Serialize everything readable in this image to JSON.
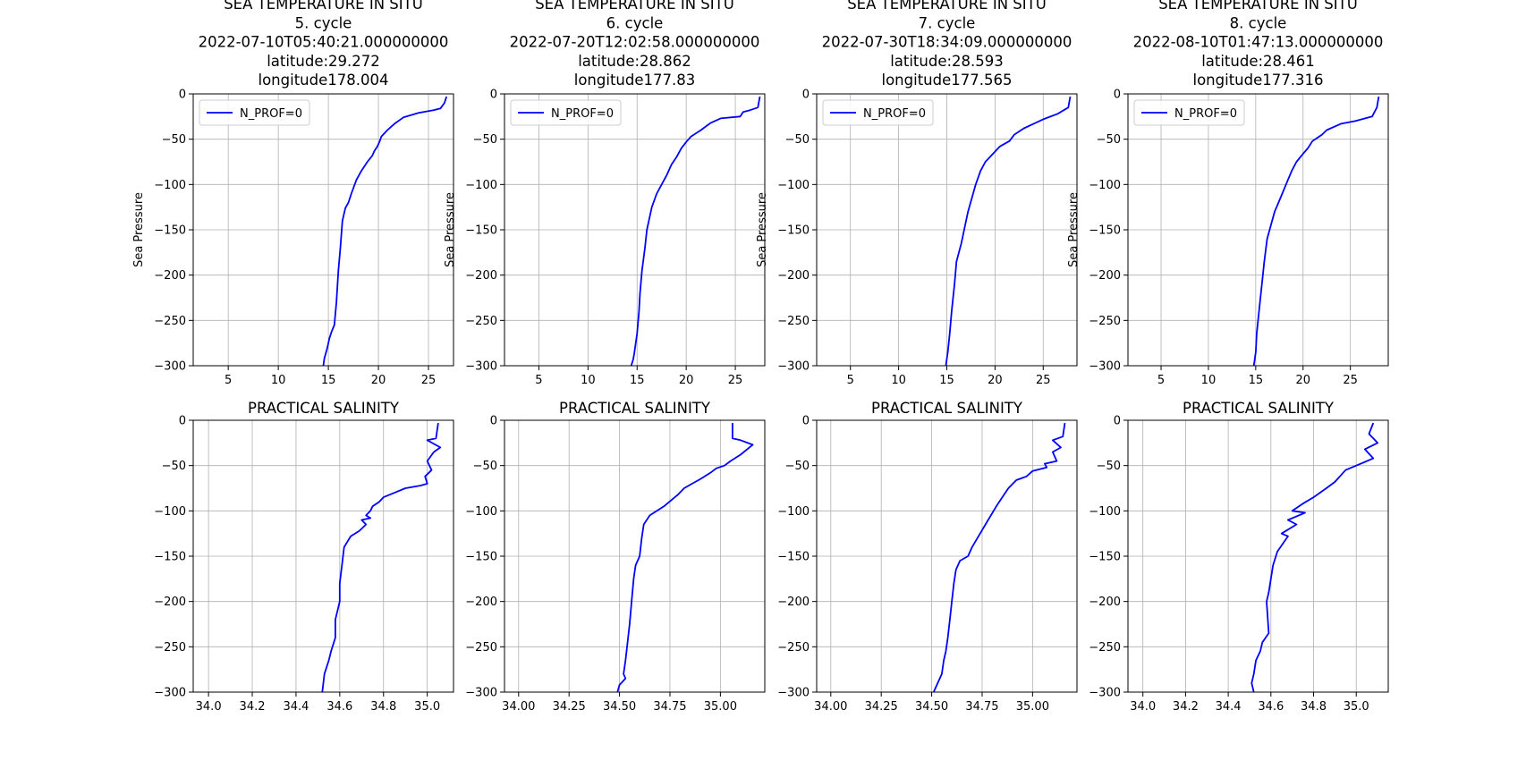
{
  "chart_data": [
    {
      "type": "line",
      "title": [
        "SEA TEMPERATURE IN SITU",
        "5. cycle",
        "2022-07-10T05:40:21.000000000",
        "latitude:29.272",
        "longitude178.004"
      ],
      "xlabel": "",
      "ylabel": "Sea Pressure",
      "xlim": [
        1.5,
        27.5
      ],
      "ylim": [
        -300,
        0
      ],
      "xticks": [
        5,
        10,
        15,
        20,
        25
      ],
      "yticks": [
        0,
        -50,
        -100,
        -150,
        -200,
        -250,
        -300
      ],
      "grid": true,
      "legend": "top-left",
      "series": [
        {
          "name": "N_PROF=0",
          "color": "#0000ff",
          "x": [
            26.8,
            26.6,
            26.2,
            25.5,
            24.0,
            22.5,
            21.6,
            20.9,
            20.3,
            20.1,
            19.9,
            19.6,
            19.4,
            18.9,
            18.3,
            17.8,
            17.3,
            17.0,
            16.7,
            16.4,
            16.2,
            16.0,
            15.8,
            15.6,
            15.3,
            15.1,
            14.9,
            14.6,
            14.5
          ],
          "y": [
            -3,
            -10,
            -16,
            -18,
            -21,
            -26,
            -33,
            -40,
            -47,
            -53,
            -58,
            -63,
            -68,
            -75,
            -85,
            -95,
            -110,
            -120,
            -126,
            -140,
            -170,
            -195,
            -230,
            -255,
            -263,
            -270,
            -280,
            -292,
            -300
          ]
        }
      ]
    },
    {
      "type": "line",
      "title": [
        "SEA TEMPERATURE IN SITU",
        "6. cycle",
        "2022-07-20T12:02:58.000000000",
        "latitude:28.862",
        "longitude177.83"
      ],
      "xlabel": "",
      "ylabel": "Sea Pressure",
      "xlim": [
        1.5,
        28
      ],
      "ylim": [
        -300,
        0
      ],
      "xticks": [
        5,
        10,
        15,
        20,
        25
      ],
      "yticks": [
        0,
        -50,
        -100,
        -150,
        -200,
        -250,
        -300
      ],
      "grid": true,
      "legend": "top-left",
      "series": [
        {
          "name": "N_PROF=0",
          "color": "#0000ff",
          "x": [
            27.5,
            27.3,
            26.5,
            25.8,
            25.5,
            23.5,
            22.5,
            21.5,
            20.5,
            20.0,
            19.5,
            19.0,
            18.5,
            18.0,
            17.5,
            17.0,
            16.5,
            16.0,
            15.8,
            15.5,
            15.3,
            15.2,
            15.0,
            14.8,
            14.7,
            14.6,
            14.4
          ],
          "y": [
            -3,
            -15,
            -18,
            -20,
            -25,
            -27,
            -32,
            -40,
            -47,
            -53,
            -60,
            -70,
            -78,
            -90,
            -100,
            -110,
            -125,
            -150,
            -170,
            -195,
            -220,
            -240,
            -265,
            -280,
            -287,
            -293,
            -300
          ]
        }
      ]
    },
    {
      "type": "line",
      "title": [
        "SEA TEMPERATURE IN SITU",
        "7. cycle",
        "2022-07-30T18:34:09.000000000",
        "latitude:28.593",
        "longitude177.565"
      ],
      "xlabel": "",
      "ylabel": "Sea Pressure",
      "xlim": [
        1.5,
        28.5
      ],
      "ylim": [
        -300,
        0
      ],
      "xticks": [
        5,
        10,
        15,
        20,
        25
      ],
      "yticks": [
        0,
        -50,
        -100,
        -150,
        -200,
        -250,
        -300
      ],
      "grid": true,
      "legend": "top-left",
      "series": [
        {
          "name": "N_PROF=0",
          "color": "#0000ff",
          "x": [
            27.8,
            27.6,
            26.5,
            25.0,
            24.0,
            23.0,
            22.0,
            21.5,
            20.5,
            19.8,
            19.0,
            18.5,
            18.0,
            17.6,
            17.2,
            16.8,
            16.5,
            16.0,
            15.8,
            15.5,
            15.3,
            15.1,
            14.9
          ],
          "y": [
            -3,
            -15,
            -22,
            -28,
            -33,
            -38,
            -45,
            -52,
            -58,
            -66,
            -75,
            -85,
            -100,
            -115,
            -130,
            -150,
            -165,
            -185,
            -210,
            -240,
            -265,
            -285,
            -300
          ]
        }
      ]
    },
    {
      "type": "line",
      "title": [
        "SEA TEMPERATURE IN SITU",
        "8. cycle",
        "2022-08-10T01:47:13.000000000",
        "latitude:28.461",
        "longitude177.316"
      ],
      "xlabel": "",
      "ylabel": "Sea Pressure",
      "xlim": [
        1.5,
        29
      ],
      "ylim": [
        -300,
        0
      ],
      "xticks": [
        5,
        10,
        15,
        20,
        25
      ],
      "yticks": [
        0,
        -50,
        -100,
        -150,
        -200,
        -250,
        -300
      ],
      "grid": true,
      "legend": "top-left",
      "series": [
        {
          "name": "N_PROF=0",
          "color": "#0000ff",
          "x": [
            28.0,
            27.8,
            27.3,
            25.5,
            24.0,
            22.5,
            22.0,
            21.0,
            20.5,
            20.0,
            19.3,
            18.8,
            18.4,
            17.8,
            17.4,
            17.0,
            16.6,
            16.2,
            15.9,
            15.7,
            15.5,
            15.3,
            15.1,
            15.0,
            14.8
          ],
          "y": [
            -3,
            -15,
            -25,
            -30,
            -33,
            -40,
            -45,
            -52,
            -60,
            -66,
            -75,
            -85,
            -95,
            -110,
            -120,
            -130,
            -145,
            -160,
            -185,
            -205,
            -225,
            -245,
            -265,
            -285,
            -300
          ]
        }
      ]
    },
    {
      "type": "line",
      "title": "PRACTICAL SALINITY",
      "xlabel": "",
      "ylabel": "",
      "xlim": [
        33.93,
        35.12
      ],
      "ylim": [
        -300,
        0
      ],
      "xticks": [
        34.0,
        34.2,
        34.4,
        34.6,
        34.8,
        35.0
      ],
      "xtick_labels": [
        "34.0",
        "34.2",
        "34.4",
        "34.6",
        "34.8",
        "35.0"
      ],
      "yticks": [
        0,
        -50,
        -100,
        -150,
        -200,
        -250,
        -300
      ],
      "grid": true,
      "series": [
        {
          "color": "#0000ff",
          "x": [
            35.05,
            35.04,
            35.0,
            35.06,
            35.03,
            35.0,
            35.02,
            34.99,
            35.0,
            34.97,
            34.9,
            34.85,
            34.8,
            34.78,
            34.75,
            34.74,
            34.72,
            34.74,
            34.7,
            34.72,
            34.69,
            34.65,
            34.62,
            34.61,
            34.6,
            34.6,
            34.58,
            34.58,
            34.56,
            34.55,
            34.53,
            34.52
          ],
          "y": [
            -3,
            -20,
            -22,
            -30,
            -35,
            -45,
            -55,
            -62,
            -70,
            -72,
            -75,
            -80,
            -85,
            -90,
            -95,
            -100,
            -105,
            -108,
            -110,
            -115,
            -122,
            -128,
            -140,
            -160,
            -180,
            -200,
            -220,
            -240,
            -255,
            -265,
            -280,
            -300
          ]
        }
      ]
    },
    {
      "type": "line",
      "title": "PRACTICAL SALINITY",
      "xlabel": "",
      "ylabel": "",
      "xlim": [
        33.93,
        35.22
      ],
      "ylim": [
        -300,
        0
      ],
      "xticks": [
        34.0,
        34.25,
        34.5,
        34.75,
        35.0
      ],
      "xtick_labels": [
        "34.00",
        "34.25",
        "34.50",
        "34.75",
        "35.00"
      ],
      "yticks": [
        0,
        -50,
        -100,
        -150,
        -200,
        -250,
        -300
      ],
      "grid": true,
      "series": [
        {
          "color": "#0000ff",
          "x": [
            35.06,
            35.06,
            35.1,
            35.16,
            35.1,
            35.05,
            35.02,
            34.98,
            34.95,
            34.9,
            34.86,
            34.82,
            34.79,
            34.72,
            34.65,
            34.62,
            34.61,
            34.6,
            34.58,
            34.57,
            34.56,
            34.55,
            34.54,
            34.53,
            34.52,
            34.53,
            34.5,
            34.49
          ],
          "y": [
            -3,
            -20,
            -22,
            -27,
            -38,
            -45,
            -50,
            -53,
            -58,
            -65,
            -70,
            -75,
            -82,
            -95,
            -105,
            -115,
            -130,
            -150,
            -160,
            -175,
            -200,
            -225,
            -245,
            -265,
            -280,
            -285,
            -292,
            -300
          ]
        }
      ]
    },
    {
      "type": "line",
      "title": "PRACTICAL SALINITY",
      "xlabel": "",
      "ylabel": "",
      "xlim": [
        33.93,
        35.22
      ],
      "ylim": [
        -300,
        0
      ],
      "xticks": [
        34.0,
        34.25,
        34.5,
        34.75,
        35.0
      ],
      "xtick_labels": [
        "34.00",
        "34.25",
        "34.50",
        "34.75",
        "35.00"
      ],
      "yticks": [
        0,
        -50,
        -100,
        -150,
        -200,
        -250,
        -300
      ],
      "grid": true,
      "series": [
        {
          "color": "#0000ff",
          "x": [
            35.16,
            35.15,
            35.1,
            35.14,
            35.1,
            35.12,
            35.06,
            35.07,
            35.0,
            34.97,
            34.92,
            34.88,
            34.85,
            34.82,
            34.78,
            34.74,
            34.7,
            34.68,
            34.64,
            34.62,
            34.61,
            34.6,
            34.59,
            34.58,
            34.57,
            34.56,
            34.55,
            34.53,
            34.51
          ],
          "y": [
            -3,
            -18,
            -22,
            -30,
            -35,
            -45,
            -48,
            -52,
            -56,
            -62,
            -66,
            -75,
            -85,
            -95,
            -110,
            -125,
            -140,
            -150,
            -155,
            -165,
            -180,
            -200,
            -220,
            -240,
            -255,
            -265,
            -280,
            -290,
            -300
          ]
        }
      ]
    },
    {
      "type": "line",
      "title": "PRACTICAL SALINITY",
      "xlabel": "",
      "ylabel": "",
      "xlim": [
        33.93,
        35.15
      ],
      "ylim": [
        -300,
        0
      ],
      "xticks": [
        34.0,
        34.2,
        34.4,
        34.6,
        34.8,
        35.0
      ],
      "xtick_labels": [
        "34.0",
        "34.2",
        "34.4",
        "34.6",
        "34.8",
        "35.0"
      ],
      "yticks": [
        0,
        -50,
        -100,
        -150,
        -200,
        -250,
        -300
      ],
      "grid": true,
      "series": [
        {
          "color": "#0000ff",
          "x": [
            35.08,
            35.06,
            35.1,
            35.04,
            35.08,
            35.0,
            34.95,
            34.9,
            34.86,
            34.8,
            34.75,
            34.7,
            34.76,
            34.68,
            34.72,
            34.65,
            34.68,
            34.63,
            34.61,
            34.6,
            34.59,
            34.58,
            34.59,
            34.56,
            34.55,
            34.53,
            34.52,
            34.51,
            34.52
          ],
          "y": [
            -3,
            -15,
            -25,
            -32,
            -42,
            -50,
            -55,
            -68,
            -75,
            -85,
            -92,
            -100,
            -102,
            -110,
            -115,
            -125,
            -128,
            -145,
            -160,
            -175,
            -190,
            -200,
            -235,
            -245,
            -255,
            -265,
            -280,
            -290,
            -300
          ]
        }
      ]
    }
  ]
}
